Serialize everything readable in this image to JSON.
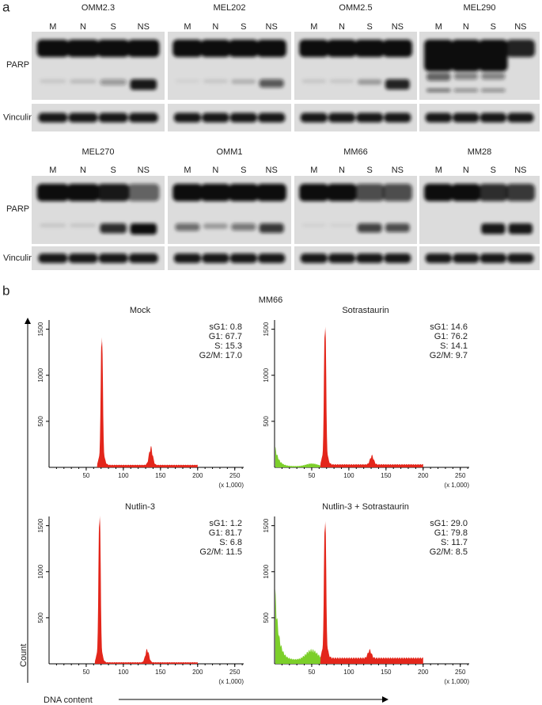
{
  "panel_a": {
    "label": "a",
    "lanes": [
      "M",
      "N",
      "S",
      "NS"
    ],
    "row_labels": [
      "PARP",
      "Vinculin"
    ],
    "rows": [
      [
        "OMM2.3",
        "MEL202",
        "OMM2.5",
        "MEL290"
      ],
      [
        "MEL270",
        "OMM1",
        "MM66",
        "MM28"
      ]
    ]
  },
  "panel_b": {
    "label": "b",
    "title": "MM66",
    "y_label": "Count",
    "x_label": "DNA content",
    "x_unit": "(x 1,000)",
    "xlim": [
      0,
      262
    ],
    "ylim": [
      0,
      1600
    ],
    "xticks": [
      50,
      100,
      150,
      200,
      250
    ],
    "yticks": [
      500,
      1000,
      1500
    ],
    "plots": [
      {
        "title": "Mock",
        "stats": [
          "sG1: 0.8",
          "G1: 67.7",
          "S: 15.3",
          "G2/M: 17.0"
        ]
      },
      {
        "title": "Sotrastaurin",
        "stats": [
          "sG1: 14.6",
          "G1: 76.2",
          "S: 14.1",
          "G2/M: 9.7"
        ]
      },
      {
        "title": "Nutlin-3",
        "stats": [
          "sG1: 1.2",
          "G1: 81.7",
          "S: 6.8",
          "G2/M: 11.5"
        ]
      },
      {
        "title": "Nutlin-3 + Sotrastaurin",
        "stats": [
          "sG1: 29.0",
          "G1: 79.8",
          "S: 11.7",
          "G2/M: 8.5"
        ]
      }
    ]
  }
}
